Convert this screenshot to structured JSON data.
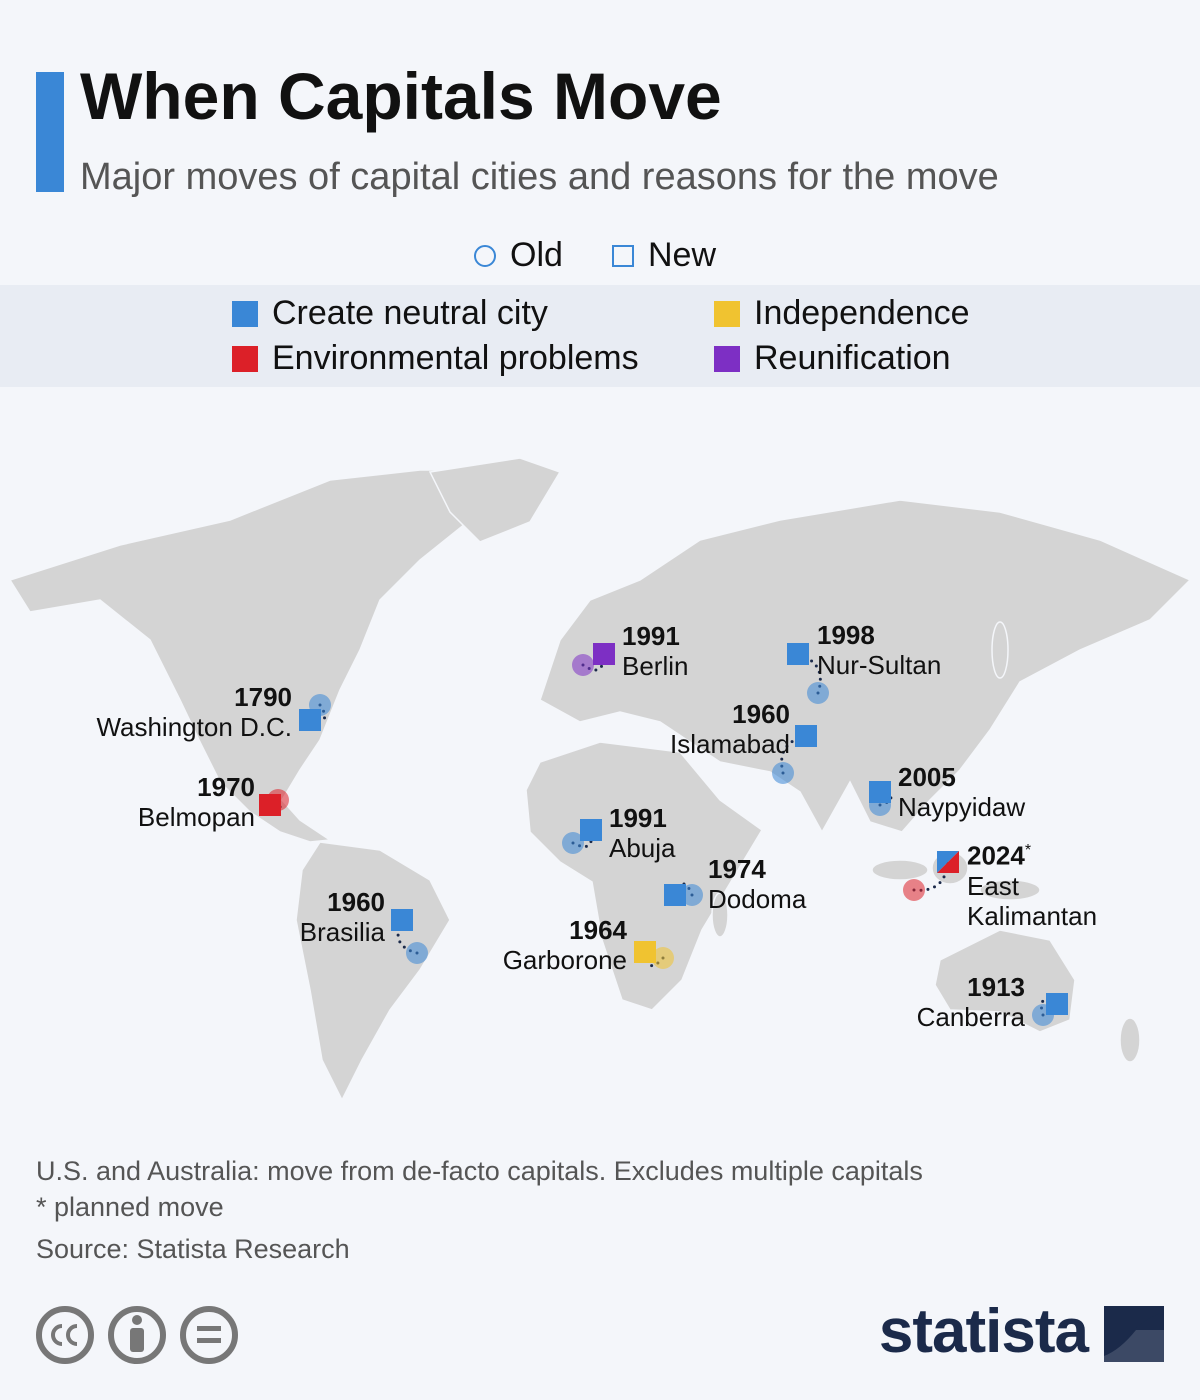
{
  "header": {
    "title": "When Capitals Move",
    "subtitle": "Major moves of capital cities and reasons for the move"
  },
  "legend": {
    "shapes": [
      {
        "name": "Old",
        "shape": "circle"
      },
      {
        "name": "New",
        "shape": "square"
      }
    ],
    "reasons": [
      {
        "name": "Create neutral city",
        "color": "#3a87d6"
      },
      {
        "name": "Independence",
        "color": "#f0c330"
      },
      {
        "name": "Environmental problems",
        "color": "#dc2028"
      },
      {
        "name": "Reunification",
        "color": "#7d2fc4"
      }
    ]
  },
  "moves": [
    {
      "year": 1790,
      "name": "Washington D.C.",
      "colors": [
        "#3a87d6"
      ]
    },
    {
      "year": 1970,
      "name": "Belmopan",
      "colors": [
        "#dc2028"
      ]
    },
    {
      "year": 1960,
      "name": "Brasilia",
      "colors": [
        "#3a87d6"
      ]
    },
    {
      "year": 1991,
      "name": "Berlin",
      "colors": [
        "#7d2fc4"
      ]
    },
    {
      "year": 1991,
      "name": "Abuja",
      "colors": [
        "#3a87d6"
      ]
    },
    {
      "year": 1974,
      "name": "Dodoma",
      "colors": [
        "#3a87d6"
      ]
    },
    {
      "year": 1964,
      "name": "Garborone",
      "colors": [
        "#f0c330"
      ]
    },
    {
      "year": 1960,
      "name": "Islamabad",
      "colors": [
        "#3a87d6"
      ]
    },
    {
      "year": 1998,
      "name": "Nur-Sultan",
      "colors": [
        "#3a87d6"
      ]
    },
    {
      "year": 2005,
      "name": "Naypyidaw",
      "colors": [
        "#3a87d6"
      ]
    },
    {
      "year": 2024,
      "note": "*",
      "name": "East Kalimantan",
      "colors": [
        "#3a87d6",
        "#dc2028"
      ]
    },
    {
      "year": 1913,
      "name": "Canberra",
      "colors": [
        "#3a87d6"
      ]
    }
  ],
  "footer": {
    "notes": [
      "U.S. and Australia: move from de-facto capitals. Excludes multiple capitals",
      "* planned move"
    ],
    "source": "Source: Statista Research",
    "brand": "statista"
  }
}
